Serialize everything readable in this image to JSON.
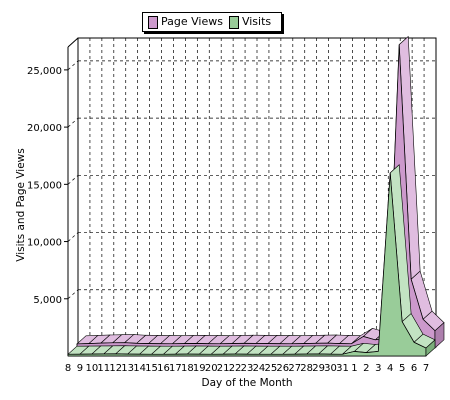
{
  "chart_data": {
    "type": "area",
    "title": "",
    "xlabel": "Day of the Month",
    "ylabel": "Visits and Page Views",
    "ylim": [
      0,
      27000
    ],
    "yticks": [
      5000,
      10000,
      15000,
      20000,
      25000
    ],
    "ytick_labels": [
      "5,000",
      "10,000",
      "15,000",
      "20,000",
      "25,000"
    ],
    "grid": true,
    "legend_position": "top",
    "categories": [
      "8",
      "9",
      "10",
      "11",
      "12",
      "13",
      "14",
      "15",
      "16",
      "17",
      "18",
      "19",
      "20",
      "21",
      "22",
      "23",
      "24",
      "25",
      "26",
      "27",
      "28",
      "29",
      "30",
      "31",
      "1",
      "2",
      "3",
      "4",
      "5",
      "6",
      "7"
    ],
    "series": [
      {
        "name": "Page Views",
        "color": "#cc99cc",
        "values": [
          350,
          380,
          420,
          450,
          460,
          400,
          380,
          370,
          360,
          380,
          390,
          370,
          360,
          380,
          400,
          390,
          380,
          370,
          360,
          380,
          400,
          420,
          380,
          360,
          1000,
          700,
          900,
          26500,
          6000,
          2500,
          1500
        ]
      },
      {
        "name": "Visits",
        "color": "#99cc99",
        "values": [
          150,
          160,
          170,
          180,
          190,
          170,
          160,
          150,
          150,
          160,
          170,
          160,
          150,
          160,
          170,
          160,
          150,
          150,
          150,
          160,
          170,
          180,
          160,
          150,
          400,
          300,
          400,
          16000,
          3000,
          1200,
          700
        ]
      }
    ]
  }
}
